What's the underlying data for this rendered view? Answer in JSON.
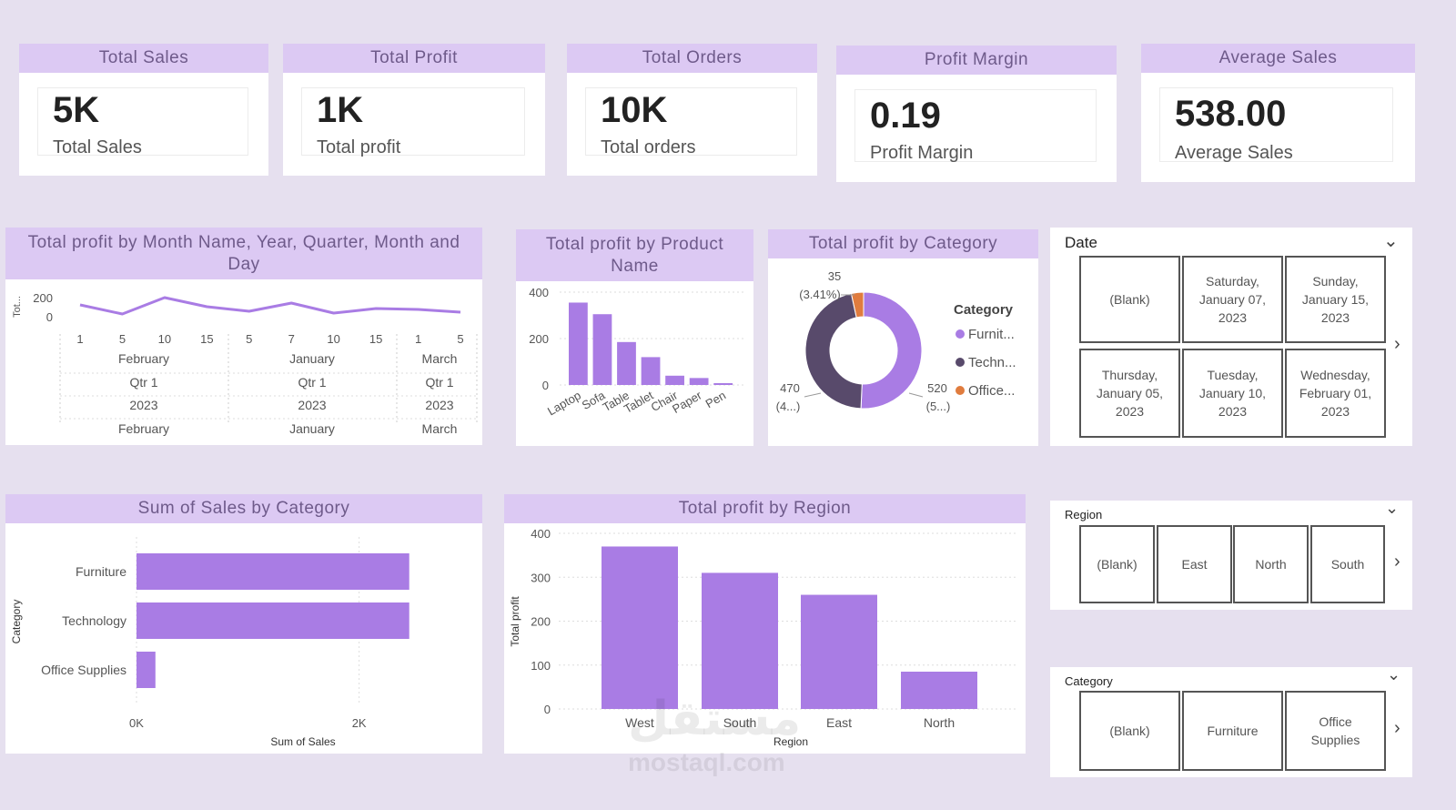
{
  "colors": {
    "accent": "#a97ce4",
    "header_bg": "#dcc9f3",
    "header_text": "#6e5a8a",
    "dark_slice": "#584a6b",
    "orange_slice": "#e07c3e",
    "page_bg": "#e6e0ef"
  },
  "kpis": [
    {
      "title": "Total Sales",
      "value": "5K",
      "label": "Total Sales"
    },
    {
      "title": "Total Profit",
      "value": "1K",
      "label": "Total profit"
    },
    {
      "title": "Total Orders",
      "value": "10K",
      "label": "Total orders"
    },
    {
      "title": "Profit Margin",
      "value": "0.19",
      "label": "Profit Margin"
    },
    {
      "title": "Average Sales",
      "value": "538.00",
      "label": "Average Sales"
    }
  ],
  "visuals": {
    "line_title": "Total profit by Month Name, Year, Quarter, Month and Day",
    "product_title": "Total profit by Product Name",
    "category_title": "Total profit by Category",
    "sales_category_title": "Sum of Sales by Category",
    "region_title": "Total profit by Region"
  },
  "chart_data": [
    {
      "type": "line",
      "title": "Total profit by Month Name, Year, Quarter, Month and Day",
      "ylabel": "Tot...",
      "yticks": [
        "200",
        "0"
      ],
      "ylim": [
        -30,
        220
      ],
      "day_ticks": [
        "1",
        "5",
        "10",
        "15",
        "5",
        "7",
        "10",
        "15",
        "1",
        "5"
      ],
      "groups": [
        {
          "month": "February",
          "quarter": "Qtr 1",
          "year": "2023",
          "month_name": "February"
        },
        {
          "month": "January",
          "quarter": "Qtr 1",
          "year": "2023",
          "month_name": "January"
        },
        {
          "month": "March",
          "quarter": "Qtr 1",
          "year": "2023",
          "month_name": "March"
        }
      ],
      "values": [
        110,
        10,
        190,
        90,
        40,
        130,
        20,
        70,
        60,
        30
      ],
      "grid": true
    },
    {
      "type": "bar",
      "title": "Total profit by Product Name",
      "categories": [
        "Laptop",
        "Sofa",
        "Table",
        "Tablet",
        "Chair",
        "Paper",
        "Pen"
      ],
      "values": [
        355,
        305,
        185,
        120,
        40,
        30,
        8
      ],
      "ylim": [
        0,
        400
      ],
      "yticks": [
        "400",
        "200",
        "0"
      ],
      "grid": true
    },
    {
      "type": "pie",
      "title": "Total profit by Category",
      "legend_title": "Category",
      "legend_position": "right",
      "categories": [
        "Furnit...",
        "Techn...",
        "Office..."
      ],
      "values": [
        520,
        470,
        35
      ],
      "slice_labels": [
        {
          "value": "520",
          "pct": "(5...)"
        },
        {
          "value": "470",
          "pct": "(4...)"
        },
        {
          "value": "35",
          "pct": "(3.41%)"
        }
      ],
      "colors": [
        "#a97ce4",
        "#584a6b",
        "#e07c3e"
      ]
    },
    {
      "type": "bar",
      "orientation": "horizontal",
      "title": "Sum of Sales by Category",
      "categories": [
        "Furniture",
        "Technology",
        "Office Supplies"
      ],
      "values": [
        2450,
        2450,
        170
      ],
      "xlim": [
        0,
        3000
      ],
      "xticks": [
        "0K",
        "2K"
      ],
      "xlabel": "Sum of Sales",
      "ylabel": "Category",
      "grid": true
    },
    {
      "type": "bar",
      "title": "Total profit by Region",
      "categories": [
        "West",
        "South",
        "East",
        "North"
      ],
      "values": [
        370,
        310,
        260,
        85
      ],
      "ylim": [
        0,
        400
      ],
      "yticks": [
        "400",
        "300",
        "200",
        "100",
        "0"
      ],
      "xlabel": "Region",
      "ylabel": "Total profit",
      "grid": true
    }
  ],
  "slicers": {
    "date": {
      "title": "Date",
      "tiles": [
        "(Blank)",
        "Saturday,\nJanuary 07,\n2023",
        "Sunday,\nJanuary 15,\n2023",
        "Thursday,\nJanuary 05,\n2023",
        "Tuesday,\nJanuary 10,\n2023",
        "Wednesday,\nFebruary 01,\n2023"
      ]
    },
    "region": {
      "title": "Region",
      "tiles": [
        "(Blank)",
        "East",
        "North",
        "South"
      ]
    },
    "category": {
      "title": "Category",
      "tiles": [
        "(Blank)",
        "Furniture",
        "Office\nSupplies"
      ]
    }
  },
  "watermark": {
    "arabic": "مستقل",
    "latin": "mostaql.com"
  }
}
